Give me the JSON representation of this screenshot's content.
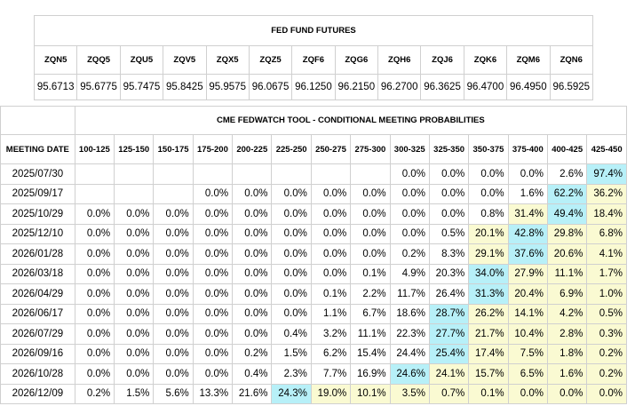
{
  "futures": {
    "title": "FED FUND FUTURES",
    "codes": [
      "ZQN5",
      "ZQQ5",
      "ZQU5",
      "ZQV5",
      "ZQX5",
      "ZQZ5",
      "ZQF6",
      "ZQG6",
      "ZQH6",
      "ZQJ6",
      "ZQK6",
      "ZQM6",
      "ZQN6"
    ],
    "prices": [
      "95.6713",
      "95.6775",
      "95.7475",
      "95.8425",
      "95.9575",
      "96.0675",
      "96.1250",
      "96.2150",
      "96.2700",
      "96.3625",
      "96.4700",
      "96.4950",
      "96.5925"
    ]
  },
  "probabilities": {
    "title": "CME FEDWATCH TOOL - CONDITIONAL MEETING PROBABILITIES",
    "header_label": "MEETING DATE",
    "columns": [
      "100-125",
      "125-150",
      "150-175",
      "175-200",
      "200-225",
      "225-250",
      "250-275",
      "275-300",
      "300-325",
      "325-350",
      "350-375",
      "375-400",
      "400-425",
      "425-450"
    ],
    "colors": {
      "highlight": "#b7f0f8",
      "shaded": "#fafad2"
    },
    "rows": [
      {
        "date": "2025/07/30",
        "values": [
          "",
          "",
          "",
          "",
          "",
          "",
          "",
          "",
          "0.0%",
          "0.0%",
          "0.0%",
          "0.0%",
          "2.6%",
          "97.4%"
        ],
        "hi": 13,
        "shade": []
      },
      {
        "date": "2025/09/17",
        "values": [
          "",
          "",
          "",
          "0.0%",
          "0.0%",
          "0.0%",
          "0.0%",
          "0.0%",
          "0.0%",
          "0.0%",
          "0.0%",
          "1.6%",
          "62.2%",
          "36.2%"
        ],
        "hi": 12,
        "shade": [
          13
        ]
      },
      {
        "date": "2025/10/29",
        "values": [
          "0.0%",
          "0.0%",
          "0.0%",
          "0.0%",
          "0.0%",
          "0.0%",
          "0.0%",
          "0.0%",
          "0.0%",
          "0.0%",
          "0.8%",
          "31.4%",
          "49.4%",
          "18.4%"
        ],
        "hi": 12,
        "shade": [
          11,
          13
        ]
      },
      {
        "date": "2025/12/10",
        "values": [
          "0.0%",
          "0.0%",
          "0.0%",
          "0.0%",
          "0.0%",
          "0.0%",
          "0.0%",
          "0.0%",
          "0.0%",
          "0.5%",
          "20.1%",
          "42.8%",
          "29.8%",
          "6.8%"
        ],
        "hi": 11,
        "shade": [
          10,
          12,
          13
        ]
      },
      {
        "date": "2026/01/28",
        "values": [
          "0.0%",
          "0.0%",
          "0.0%",
          "0.0%",
          "0.0%",
          "0.0%",
          "0.0%",
          "0.0%",
          "0.2%",
          "8.3%",
          "29.1%",
          "37.6%",
          "20.6%",
          "4.1%"
        ],
        "hi": 11,
        "shade": [
          10,
          12,
          13
        ]
      },
      {
        "date": "2026/03/18",
        "values": [
          "0.0%",
          "0.0%",
          "0.0%",
          "0.0%",
          "0.0%",
          "0.0%",
          "0.0%",
          "0.1%",
          "4.9%",
          "20.3%",
          "34.0%",
          "27.9%",
          "11.1%",
          "1.7%"
        ],
        "hi": 10,
        "shade": [
          11,
          12,
          13
        ]
      },
      {
        "date": "2026/04/29",
        "values": [
          "0.0%",
          "0.0%",
          "0.0%",
          "0.0%",
          "0.0%",
          "0.0%",
          "0.1%",
          "2.2%",
          "11.7%",
          "26.4%",
          "31.3%",
          "20.4%",
          "6.9%",
          "1.0%"
        ],
        "hi": 10,
        "shade": [
          11,
          12,
          13
        ]
      },
      {
        "date": "2026/06/17",
        "values": [
          "0.0%",
          "0.0%",
          "0.0%",
          "0.0%",
          "0.0%",
          "0.0%",
          "1.1%",
          "6.7%",
          "18.6%",
          "28.7%",
          "26.2%",
          "14.1%",
          "4.2%",
          "0.5%"
        ],
        "hi": 9,
        "shade": [
          10,
          11,
          12,
          13
        ]
      },
      {
        "date": "2026/07/29",
        "values": [
          "0.0%",
          "0.0%",
          "0.0%",
          "0.0%",
          "0.0%",
          "0.4%",
          "3.2%",
          "11.1%",
          "22.3%",
          "27.7%",
          "21.7%",
          "10.4%",
          "2.8%",
          "0.3%"
        ],
        "hi": 9,
        "shade": [
          10,
          11,
          12,
          13
        ]
      },
      {
        "date": "2026/09/16",
        "values": [
          "0.0%",
          "0.0%",
          "0.0%",
          "0.0%",
          "0.2%",
          "1.5%",
          "6.2%",
          "15.4%",
          "24.4%",
          "25.4%",
          "17.4%",
          "7.5%",
          "1.8%",
          "0.2%"
        ],
        "hi": 9,
        "shade": [
          10,
          11,
          12,
          13
        ]
      },
      {
        "date": "2026/10/28",
        "values": [
          "0.0%",
          "0.0%",
          "0.0%",
          "0.0%",
          "0.4%",
          "2.3%",
          "7.7%",
          "16.9%",
          "24.6%",
          "24.1%",
          "15.7%",
          "6.5%",
          "1.6%",
          "0.2%"
        ],
        "hi": 8,
        "shade": [
          9,
          10,
          11,
          12,
          13
        ]
      },
      {
        "date": "2026/12/09",
        "values": [
          "0.2%",
          "1.5%",
          "5.6%",
          "13.3%",
          "21.6%",
          "24.3%",
          "19.0%",
          "10.1%",
          "3.5%",
          "0.7%",
          "0.1%",
          "0.0%",
          "0.0%",
          "0.0%"
        ],
        "hi": 5,
        "shade": [
          6,
          7,
          8,
          9,
          10,
          11,
          12,
          13
        ]
      }
    ]
  }
}
